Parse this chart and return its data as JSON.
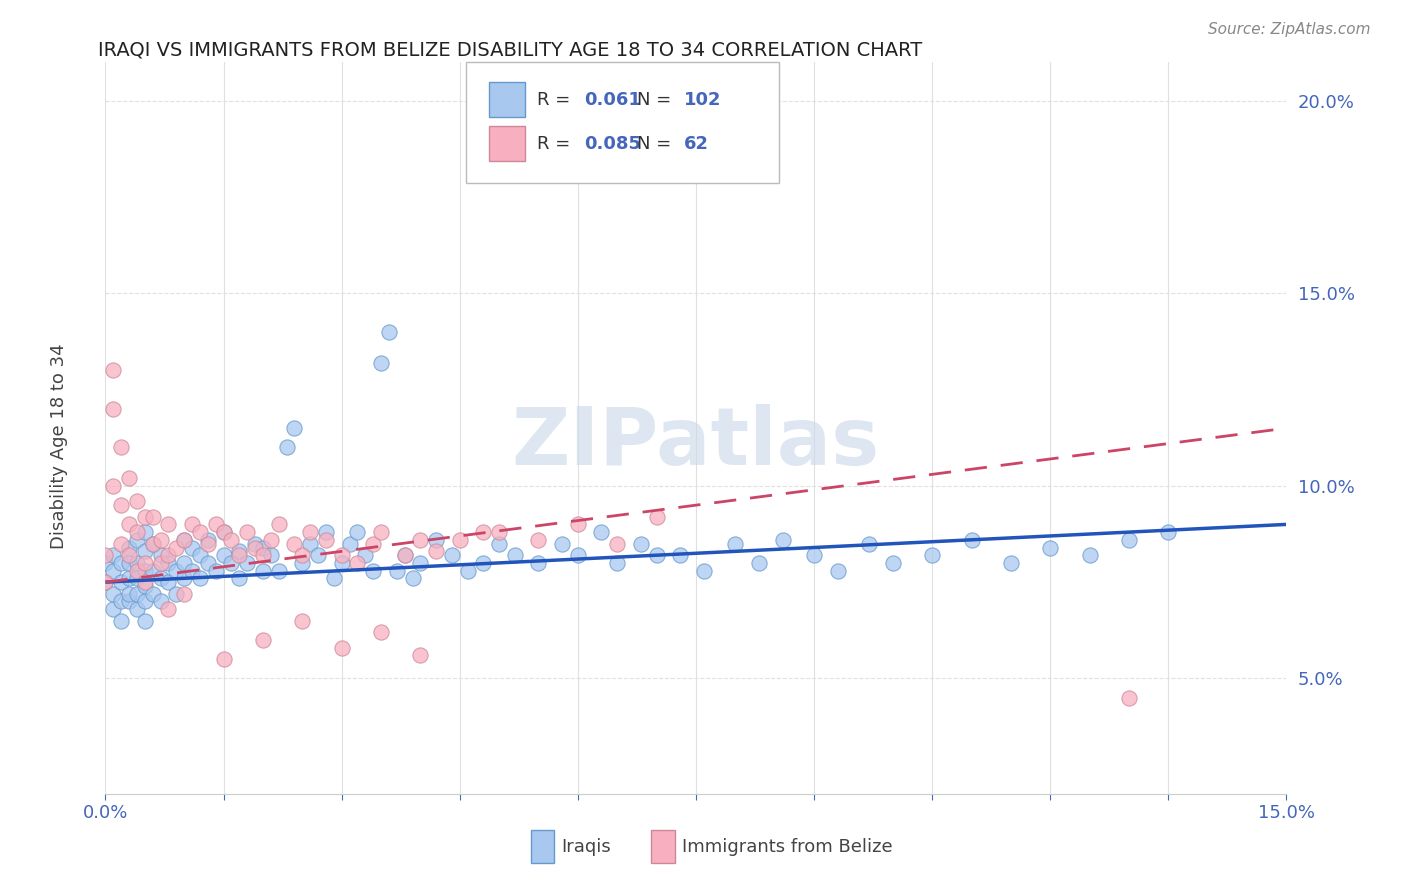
{
  "title": "IRAQI VS IMMIGRANTS FROM BELIZE DISABILITY AGE 18 TO 34 CORRELATION CHART",
  "source": "Source: ZipAtlas.com",
  "ylabel": "Disability Age 18 to 34",
  "watermark": "ZIPatlas",
  "iraqis_color": "#a8c8f0",
  "iraqis_edge": "#6699cc",
  "belize_color": "#f8b0c0",
  "belize_edge": "#cc8899",
  "trend_iraqis_color": "#2255bb",
  "trend_belize_color": "#cc4466",
  "legend_R_iraqis": "0.061",
  "legend_N_iraqis": "102",
  "legend_R_belize": "0.085",
  "legend_N_belize": "62",
  "xmin": 0.0,
  "xmax": 0.15,
  "ymin": 0.02,
  "ymax": 0.21,
  "yticks": [
    0.05,
    0.1,
    0.15,
    0.2
  ],
  "ytick_labels": [
    "5.0%",
    "10.0%",
    "15.0%",
    "20.0%"
  ],
  "grid_color": "#e0e0e0",
  "title_color": "#222222",
  "source_color": "#888888",
  "tick_color": "#4466bb",
  "watermark_color": "#c8d8e8"
}
